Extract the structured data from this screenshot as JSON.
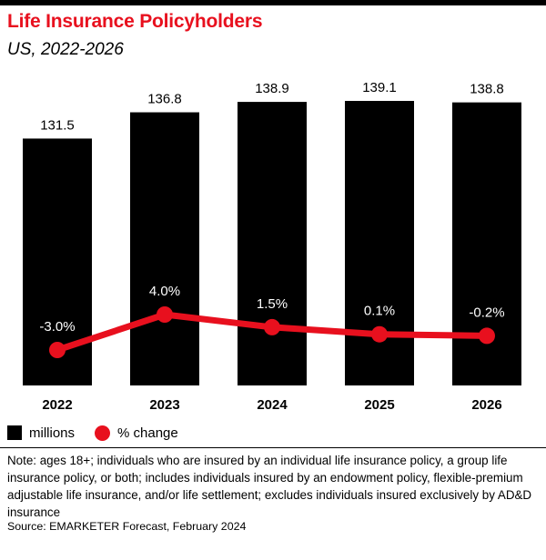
{
  "header": {
    "title": "Life Insurance Policyholders",
    "subtitle": "US, 2022-2026"
  },
  "chart_data": {
    "type": "bar",
    "categories": [
      "2022",
      "2023",
      "2024",
      "2025",
      "2026"
    ],
    "series": [
      {
        "name": "millions",
        "type": "bar",
        "values": [
          131.5,
          136.8,
          138.9,
          139.1,
          138.8
        ],
        "labels": [
          "131.5",
          "136.8",
          "138.9",
          "139.1",
          "138.8"
        ],
        "color": "#000000"
      },
      {
        "name": "% change",
        "type": "line",
        "values": [
          -3.0,
          4.0,
          1.5,
          0.1,
          -0.2
        ],
        "labels": [
          "-3.0%",
          "4.0%",
          "1.5%",
          "0.1%",
          "-0.2%"
        ],
        "color": "#e8101e"
      }
    ],
    "grid": false,
    "legend_position": "bottom-left"
  },
  "legend": {
    "items": [
      {
        "label": "millions",
        "shape": "square",
        "color": "#000000"
      },
      {
        "label": "% change",
        "shape": "circle",
        "color": "#e8101e"
      }
    ]
  },
  "footer": {
    "note": "Note: ages 18+; individuals who are insured by an individual life insurance policy, a group life insurance policy, or both; includes individuals insured by an endowment policy, flexible-premium adjustable life insurance, and/or life settlement; excludes individuals insured exclusively by AD&D insurance",
    "source": "Source: EMARKETER Forecast, February 2024"
  },
  "colors": {
    "accent": "#e8101e",
    "bar": "#000000"
  }
}
